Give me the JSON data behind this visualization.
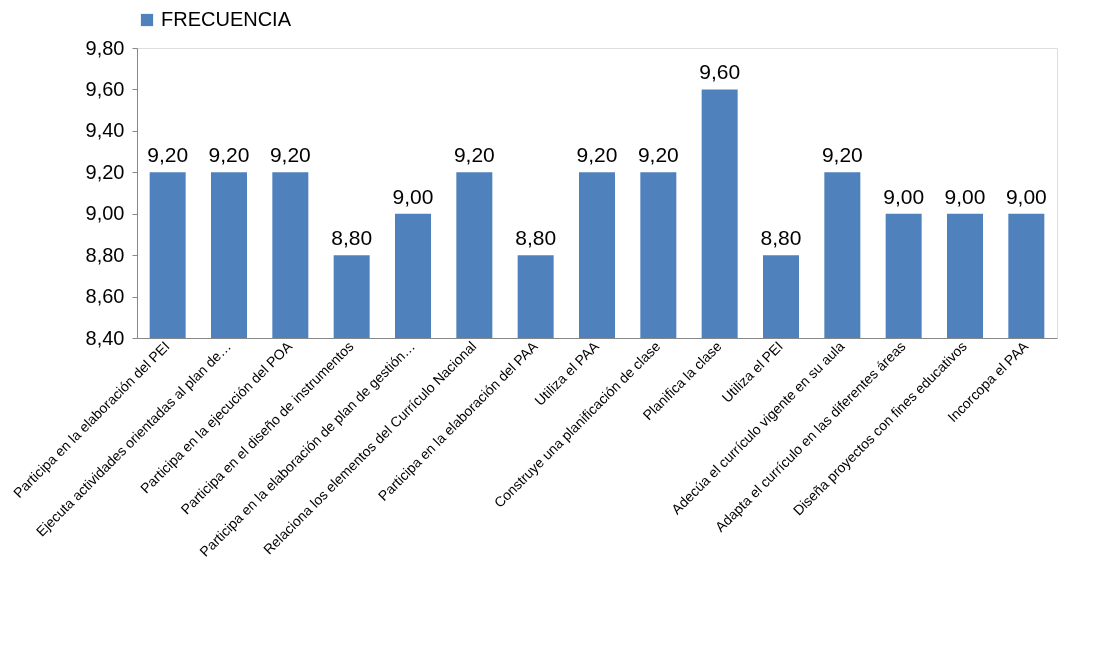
{
  "chart_data": {
    "type": "bar",
    "categories": [
      "Participa en la elaboración del PEI",
      "Ejecuta actividades  orientadas al plan de…",
      "Participa en la ejecución del POA",
      "Participa en el diseño de instrumentos",
      "Participa en la elaboración de plan de gestión…",
      "Relaciona los elementos  del Currículo Nacional",
      "Participa en la elaboración del PAA",
      "Utiliza el PAA",
      "Construye una planificación de clase",
      "Planifica la clase",
      "Utiliza el PEI",
      "Adecúa el currículo vigente en su aula",
      "Adapta el currículo en las diferentes áreas",
      "Diseña proyectos con fines educativos",
      "Incorcopa el PAA"
    ],
    "series": [
      {
        "name": "FRECUENCIA",
        "color": "#4f81bd",
        "values": [
          9.2,
          9.2,
          9.2,
          8.8,
          9.0,
          9.2,
          8.8,
          9.2,
          9.2,
          9.6,
          8.8,
          9.2,
          9.0,
          9.0,
          9.0
        ],
        "value_labels": [
          "9,20",
          "9,20",
          "9,20",
          "8,80",
          "9,00",
          "9,20",
          "8,80",
          "9,20",
          "9,20",
          "9,60",
          "8,80",
          "9,20",
          "9,00",
          "9,00",
          "9,00"
        ]
      }
    ],
    "ylim": [
      8.4,
      9.8
    ],
    "yticks": [
      {
        "value": 8.4,
        "label": "8,40"
      },
      {
        "value": 8.6,
        "label": "8,60"
      },
      {
        "value": 8.8,
        "label": "8,80"
      },
      {
        "value": 9.0,
        "label": "9,00"
      },
      {
        "value": 9.2,
        "label": "9,20"
      },
      {
        "value": 9.4,
        "label": "9,40"
      },
      {
        "value": 9.6,
        "label": "9,60"
      },
      {
        "value": 9.8,
        "label": "9,80"
      }
    ],
    "grid": false,
    "legend": "top"
  }
}
